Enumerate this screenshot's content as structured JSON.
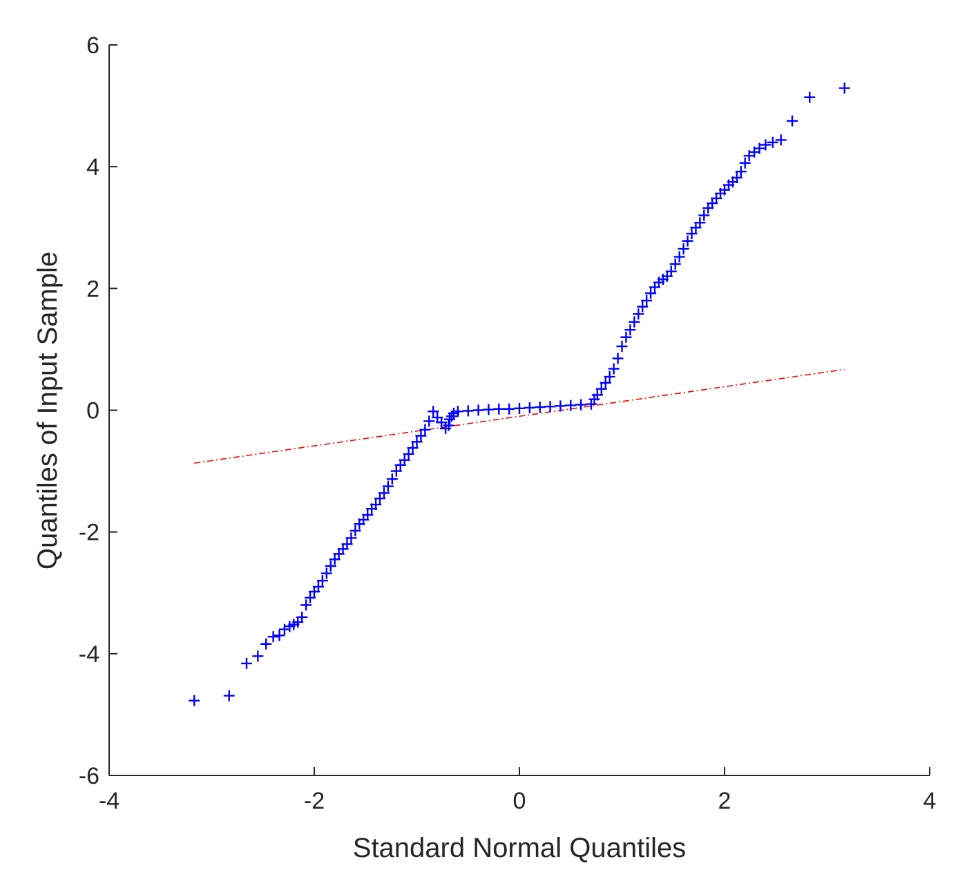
{
  "chart_data": {
    "type": "scatter",
    "title": "",
    "xlabel": "Standard Normal Quantiles",
    "ylabel": "Quantiles of Input Sample",
    "xlim": [
      -4,
      4
    ],
    "ylim": [
      -6,
      6
    ],
    "xticks": [
      -4,
      -2,
      0,
      2,
      4
    ],
    "yticks": [
      -6,
      -4,
      -2,
      0,
      2,
      4,
      6
    ],
    "xtick_labels": [
      "-4",
      "-2",
      "0",
      "2",
      "4"
    ],
    "ytick_labels": [
      "-6",
      "-4",
      "-2",
      "0",
      "2",
      "4",
      "6"
    ],
    "grid": false,
    "legend": "none",
    "colors": {
      "points": "#0000ff",
      "reference_line": "#ff0000",
      "axes": "#262626"
    },
    "series": [
      {
        "type": "scatter",
        "marker": "plus",
        "x": [
          -3.17,
          -2.83,
          -2.66,
          -2.55,
          -2.47,
          -2.4,
          -2.34,
          -2.29,
          -2.24,
          -2.2,
          -2.16,
          -2.12,
          -2.08,
          -2.04,
          -2.0,
          -1.96,
          -1.92,
          -1.88,
          -1.84,
          -1.8,
          -1.76,
          -1.72,
          -1.68,
          -1.64,
          -1.6,
          -1.56,
          -1.52,
          -1.48,
          -1.44,
          -1.4,
          -1.36,
          -1.32,
          -1.28,
          -1.24,
          -1.2,
          -1.16,
          -1.12,
          -1.08,
          -1.04,
          -1.0,
          -0.96,
          -0.92,
          -0.88,
          -0.84,
          -0.8,
          -0.76,
          -0.72,
          -0.69,
          -0.68,
          -0.66,
          -0.64,
          -0.6,
          -0.5,
          -0.4,
          -0.3,
          -0.2,
          -0.1,
          0.0,
          0.1,
          0.2,
          0.3,
          0.4,
          0.5,
          0.6,
          0.7,
          0.73,
          0.76,
          0.8,
          0.84,
          0.88,
          0.92,
          0.96,
          1.0,
          1.04,
          1.08,
          1.12,
          1.16,
          1.2,
          1.24,
          1.28,
          1.32,
          1.36,
          1.4,
          1.44,
          1.48,
          1.52,
          1.56,
          1.6,
          1.64,
          1.68,
          1.72,
          1.76,
          1.8,
          1.84,
          1.88,
          1.92,
          1.96,
          2.0,
          2.04,
          2.08,
          2.12,
          2.16,
          2.2,
          2.24,
          2.29,
          2.34,
          2.4,
          2.47,
          2.55,
          2.66,
          2.83,
          3.17
        ],
        "y": [
          -4.77,
          -4.69,
          -4.16,
          -4.04,
          -3.84,
          -3.72,
          -3.7,
          -3.6,
          -3.55,
          -3.52,
          -3.48,
          -3.4,
          -3.2,
          -3.08,
          -2.98,
          -2.9,
          -2.8,
          -2.68,
          -2.56,
          -2.45,
          -2.36,
          -2.28,
          -2.2,
          -2.1,
          -1.98,
          -1.87,
          -1.8,
          -1.72,
          -1.62,
          -1.55,
          -1.45,
          -1.36,
          -1.25,
          -1.13,
          -1.0,
          -0.9,
          -0.82,
          -0.72,
          -0.62,
          -0.52,
          -0.42,
          -0.32,
          -0.18,
          -0.02,
          -0.12,
          -0.2,
          -0.3,
          -0.25,
          -0.15,
          -0.1,
          -0.05,
          -0.02,
          -0.01,
          0.0,
          0.01,
          0.02,
          0.02,
          0.03,
          0.04,
          0.05,
          0.06,
          0.07,
          0.08,
          0.09,
          0.1,
          0.18,
          0.25,
          0.35,
          0.45,
          0.55,
          0.68,
          0.85,
          1.05,
          1.2,
          1.32,
          1.45,
          1.58,
          1.7,
          1.8,
          1.92,
          2.02,
          2.1,
          2.15,
          2.2,
          2.28,
          2.4,
          2.52,
          2.65,
          2.78,
          2.9,
          3.0,
          3.08,
          3.2,
          3.32,
          3.4,
          3.48,
          3.56,
          3.62,
          3.7,
          3.75,
          3.82,
          3.92,
          4.06,
          4.18,
          4.24,
          4.3,
          4.36,
          4.4,
          4.44,
          4.75,
          5.14,
          5.29
        ]
      },
      {
        "type": "line",
        "style": "dash-dot",
        "x": [
          -3.17,
          3.17
        ],
        "y": [
          -0.87,
          0.67
        ]
      }
    ]
  }
}
